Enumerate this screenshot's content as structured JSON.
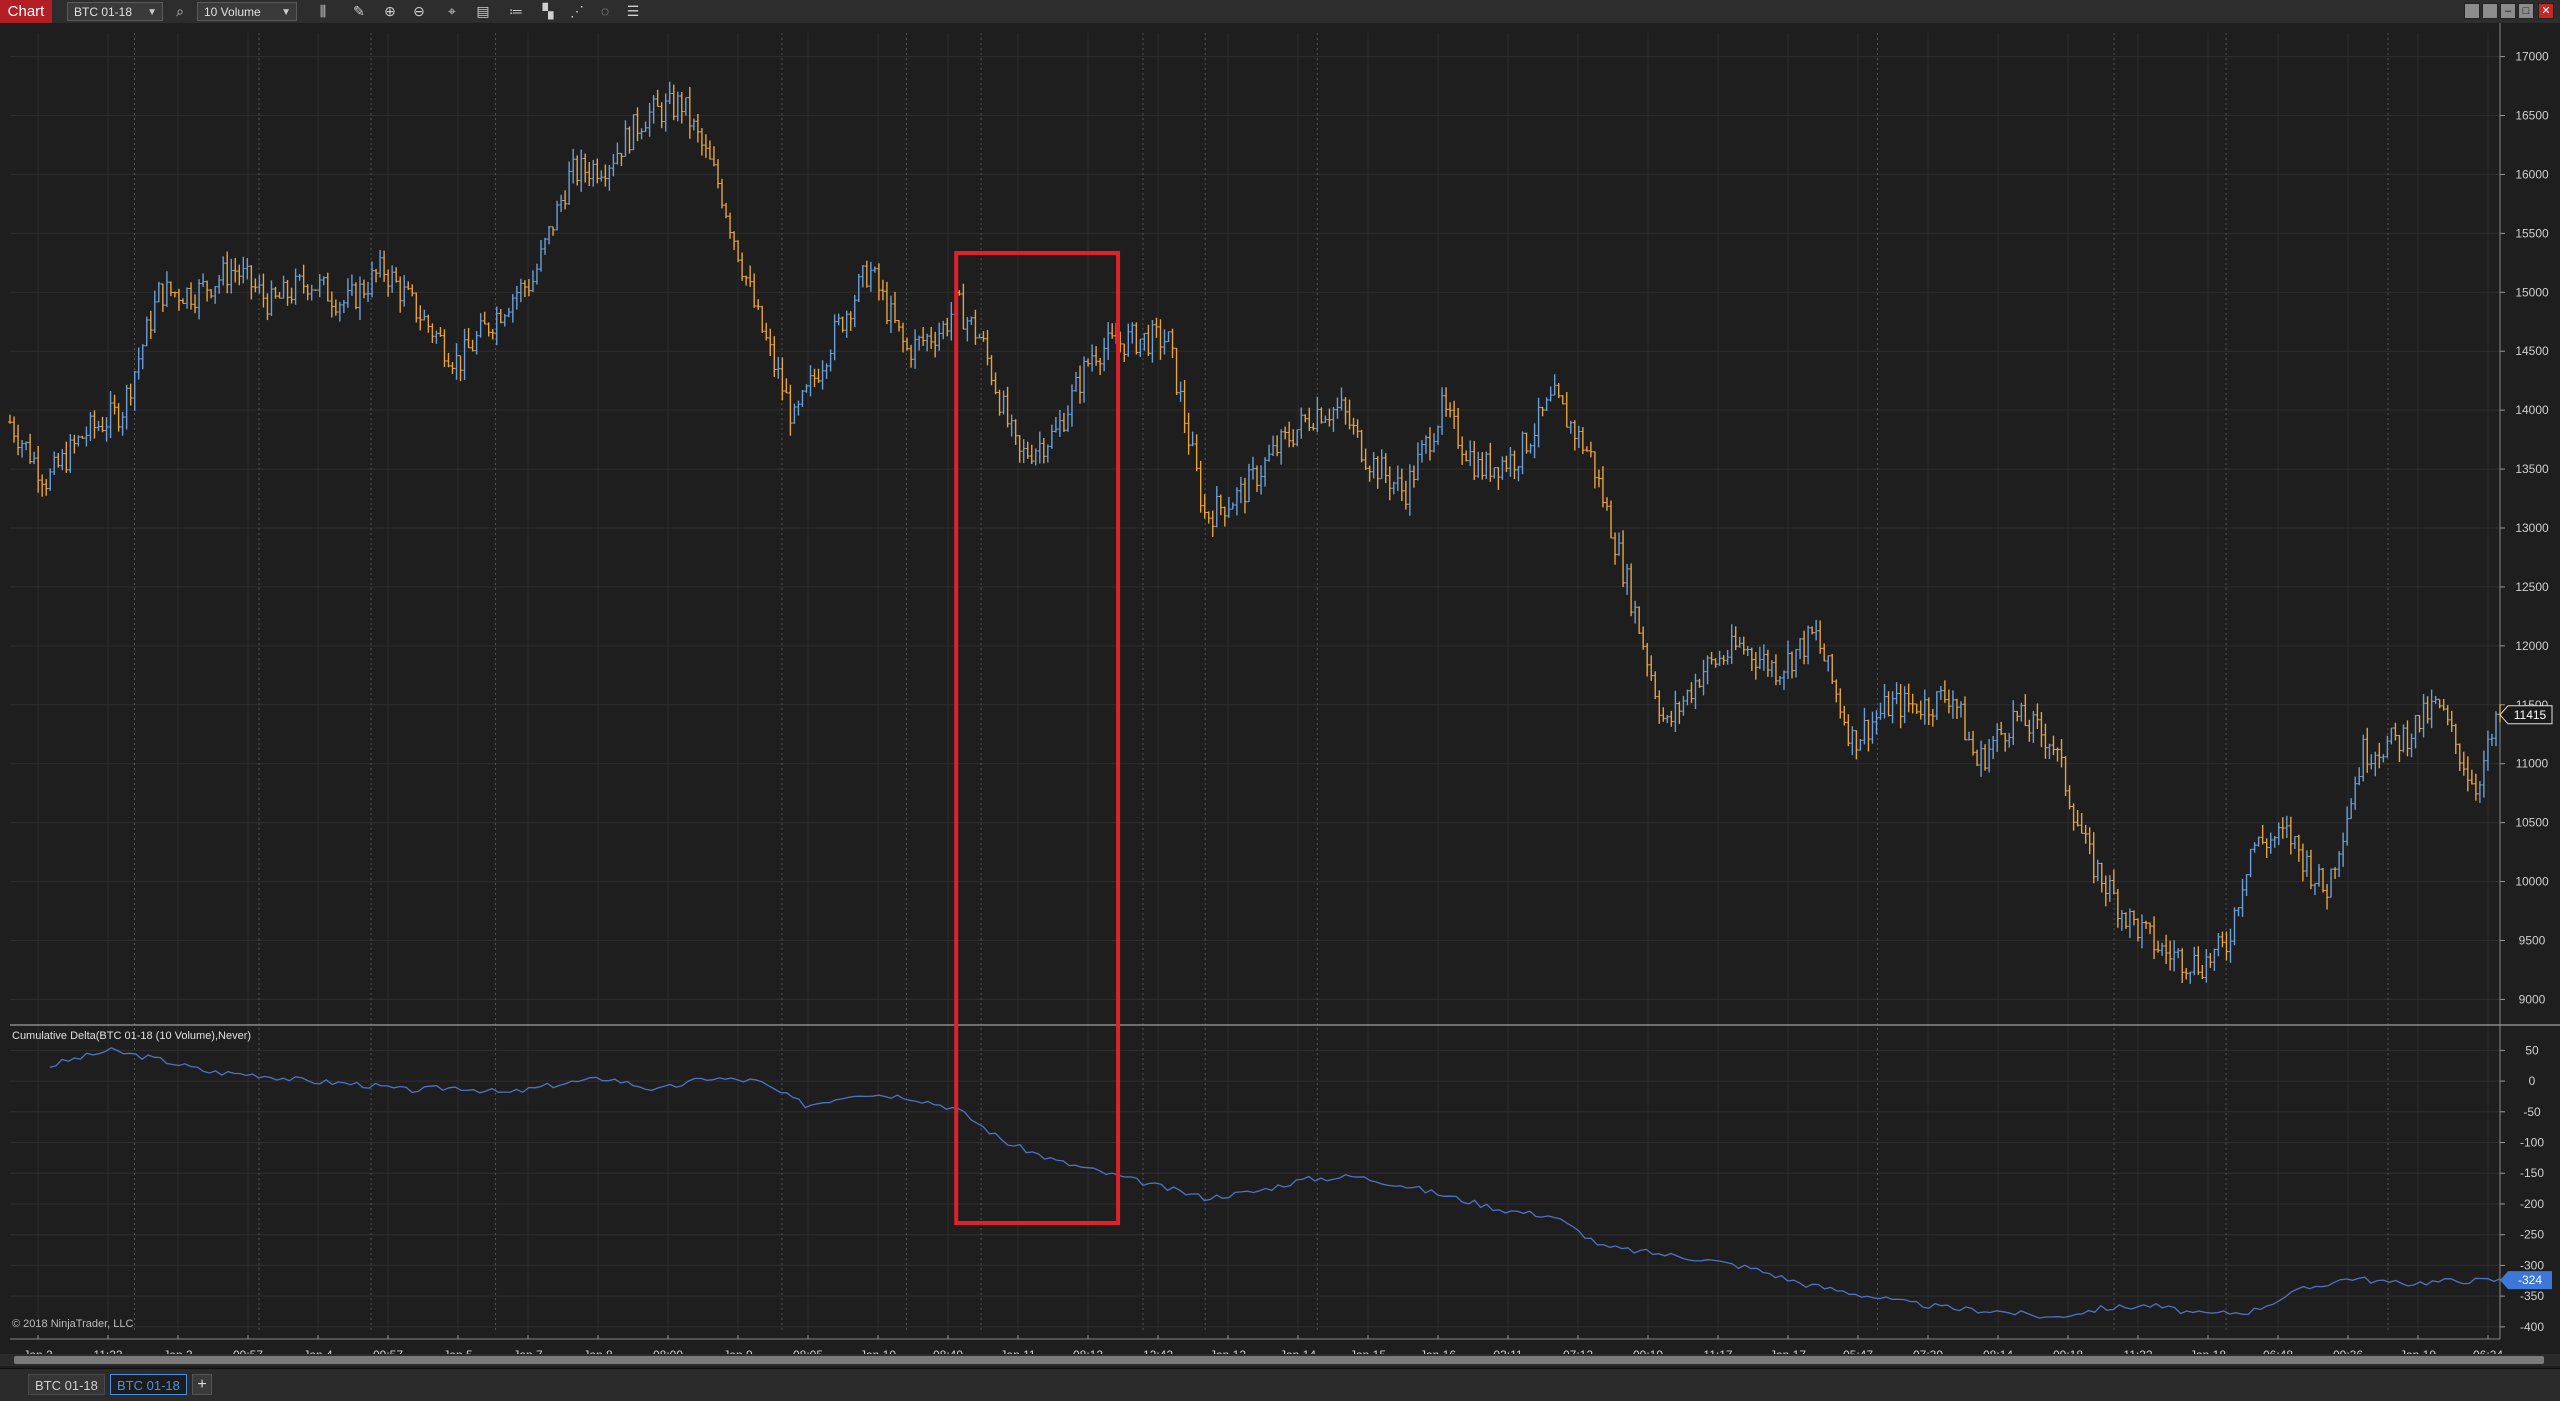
{
  "toolbar": {
    "chart_label": "Chart",
    "instrument": "BTC 01-18",
    "interval": "10 Volume",
    "icons": [
      "search-icon",
      "bar-type-icon",
      "pencil-icon",
      "zoom-in-icon",
      "zoom-out-icon",
      "crosshair-icon",
      "properties-icon",
      "strategies-icon",
      "indicators-icon",
      "drawing-objects-icon",
      "reload-icon",
      "data-box-icon"
    ]
  },
  "window_buttons": [
    "restore-icon",
    "tile-icon",
    "minimize-icon",
    "maximize-icon",
    "close-icon"
  ],
  "tabs": [
    {
      "label": "BTC 01-18"
    },
    {
      "label": "BTC 01-18"
    }
  ],
  "add_tab_label": "+",
  "copyright": "© 2018 NinjaTrader, LLC",
  "colors": {
    "up": "#6a9fd8",
    "down": "#e8a33d",
    "delta_line": "#4f72c4",
    "highlight": "#e0212b",
    "price_marker": "#1a1a1a",
    "delta_marker": "#3d78d8"
  },
  "chart_data": [
    {
      "type": "ohlc",
      "name": "BTC 01-18 (10 Volume)",
      "ylim": [
        8800,
        17200
      ],
      "y_ticks": [
        9000,
        9500,
        10000,
        10500,
        11000,
        11500,
        12000,
        12500,
        13000,
        13500,
        14000,
        14500,
        15000,
        15500,
        16000,
        16500,
        17000
      ],
      "last_value": "11415",
      "x_tick_labels": [
        "Jan 2",
        "11:22",
        "Jan 3",
        "09:57",
        "Jan 4",
        "09:57",
        "Jan 5",
        "Jan 7",
        "Jan 8",
        "08:09",
        "Jan 9",
        "08:05",
        "Jan 10",
        "08:49",
        "Jan 11",
        "08:12",
        "12:42",
        "Jan 12",
        "Jan 14",
        "Jan 15",
        "Jan 16",
        "03:11",
        "07:12",
        "09:19",
        "11:17",
        "Jan 17",
        "05:47",
        "07:39",
        "08:14",
        "09:18",
        "11:32",
        "Jan 18",
        "06:48",
        "09:36",
        "Jan 19",
        "06:24"
      ],
      "x": [
        0.0,
        0.015,
        0.03,
        0.045,
        0.06,
        0.075,
        0.09,
        0.105,
        0.12,
        0.135,
        0.15,
        0.165,
        0.18,
        0.195,
        0.203,
        0.21,
        0.225,
        0.24,
        0.255,
        0.27,
        0.285,
        0.3,
        0.315,
        0.33,
        0.345,
        0.36,
        0.375,
        0.38,
        0.39,
        0.405,
        0.42,
        0.435,
        0.45,
        0.465,
        0.48,
        0.495,
        0.51,
        0.525,
        0.535,
        0.545,
        0.56,
        0.575,
        0.59,
        0.605,
        0.62,
        0.635,
        0.65,
        0.665,
        0.68,
        0.695,
        0.71,
        0.725,
        0.74,
        0.755,
        0.77,
        0.78,
        0.79,
        0.805,
        0.82,
        0.835,
        0.85,
        0.865,
        0.88,
        0.89,
        0.9,
        0.915,
        0.93,
        0.945,
        0.96,
        0.975,
        0.99,
        1.0
      ],
      "close": [
        13900,
        13400,
        13800,
        14000,
        15000,
        15000,
        15200,
        14900,
        15100,
        14900,
        15200,
        14800,
        14400,
        14800,
        15000,
        15100,
        16000,
        16100,
        16500,
        16600,
        15900,
        14800,
        13900,
        14600,
        15200,
        14500,
        14700,
        14900,
        14600,
        13600,
        13800,
        14500,
        14600,
        14600,
        13100,
        13300,
        13700,
        14000,
        14000,
        13600,
        13300,
        14000,
        13500,
        13600,
        14100,
        13600,
        12500,
        11300,
        11800,
        12000,
        11800,
        12100,
        11200,
        11500,
        11500,
        11600,
        11000,
        11400,
        11200,
        10200,
        9700,
        9400,
        9300,
        9450,
        10300,
        10400,
        9900,
        11100,
        11200,
        11500,
        10800,
        11400
      ]
    },
    {
      "type": "line",
      "name": "Cumulative Delta(BTC 01-18 (10 Volume),Never)",
      "ylim": [
        -410,
        75
      ],
      "y_ticks": [
        50,
        0,
        -50,
        -100,
        -150,
        -200,
        -250,
        -300,
        -350,
        -400
      ],
      "last_value": "-324",
      "x": [
        0.0,
        0.02,
        0.04,
        0.06,
        0.08,
        0.1,
        0.12,
        0.14,
        0.16,
        0.18,
        0.2,
        0.22,
        0.24,
        0.26,
        0.28,
        0.3,
        0.32,
        0.34,
        0.36,
        0.38,
        0.4,
        0.42,
        0.44,
        0.46,
        0.48,
        0.5,
        0.52,
        0.54,
        0.56,
        0.58,
        0.6,
        0.62,
        0.64,
        0.66,
        0.68,
        0.7,
        0.72,
        0.74,
        0.76,
        0.78,
        0.8,
        0.82,
        0.84,
        0.86,
        0.88,
        0.9,
        0.92,
        0.94,
        0.96,
        0.98,
        1.0
      ],
      "values": [
        0,
        30,
        50,
        35,
        15,
        10,
        0,
        -5,
        -15,
        -10,
        -20,
        -5,
        5,
        -15,
        5,
        0,
        -40,
        -20,
        -25,
        -45,
        -100,
        -130,
        -150,
        -170,
        -190,
        -180,
        -160,
        -155,
        -170,
        -190,
        -210,
        -220,
        -270,
        -280,
        -290,
        -305,
        -330,
        -345,
        -360,
        -370,
        -375,
        -385,
        -370,
        -365,
        -380,
        -375,
        -340,
        -320,
        -330,
        -325,
        -324
      ]
    }
  ],
  "annotation": {
    "type": "rectangle",
    "start": 0.38,
    "end": 0.445
  }
}
